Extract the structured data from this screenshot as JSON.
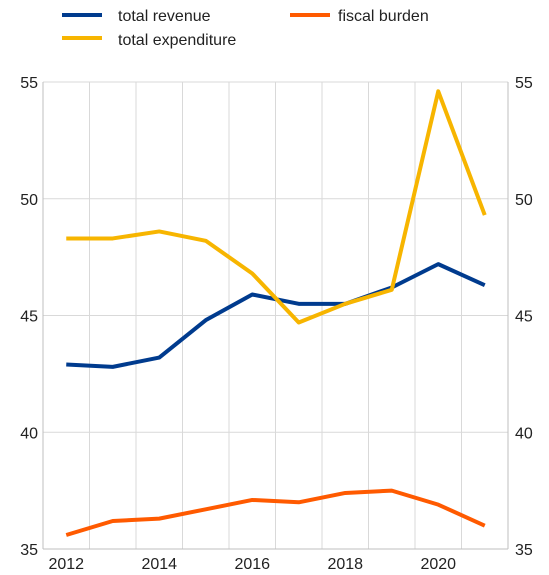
{
  "chart_data": {
    "type": "line",
    "title": "",
    "xlabel": "",
    "ylabel": "",
    "x": [
      2012,
      2013,
      2014,
      2015,
      2016,
      2017,
      2018,
      2019,
      2020,
      2021
    ],
    "x_tick_labels": [
      "2012",
      "2014",
      "2016",
      "2018",
      "2020"
    ],
    "y_tick_labels": [
      "35",
      "40",
      "45",
      "50",
      "55"
    ],
    "ylim": [
      35,
      55
    ],
    "grid": true,
    "legend_position": "top",
    "dual_y_axis_same_scale": true,
    "series": [
      {
        "name": "total revenue",
        "color": "#003b8e",
        "values": [
          42.9,
          42.8,
          43.2,
          44.8,
          45.9,
          45.5,
          45.5,
          46.2,
          47.2,
          46.3
        ]
      },
      {
        "name": "total expenditure",
        "color": "#f7b500",
        "values": [
          48.3,
          48.3,
          48.6,
          48.2,
          46.8,
          44.7,
          45.5,
          46.1,
          54.6,
          49.3
        ]
      },
      {
        "name": "fiscal burden",
        "color": "#ff5a00",
        "values": [
          35.6,
          36.2,
          36.3,
          36.7,
          37.1,
          37.0,
          37.4,
          37.5,
          36.9,
          36.0
        ]
      }
    ]
  }
}
